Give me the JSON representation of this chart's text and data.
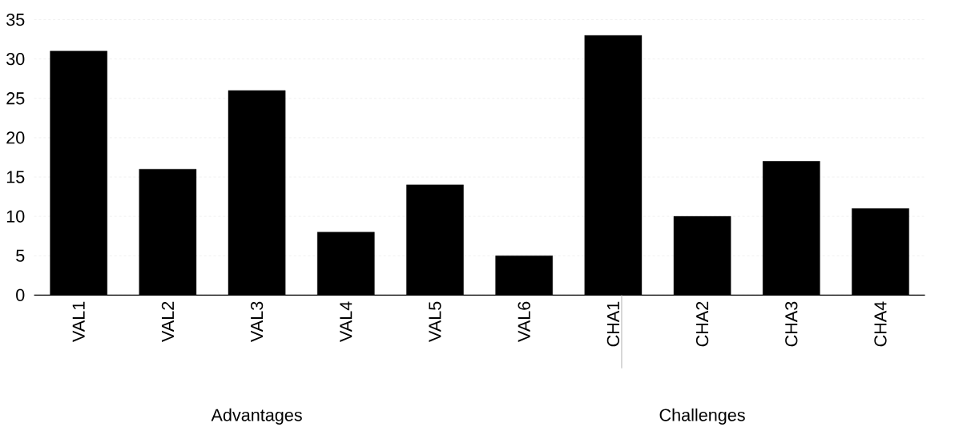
{
  "chart_data": {
    "type": "bar",
    "categories": [
      "VAL1",
      "VAL2",
      "VAL3",
      "VAL4",
      "VAL5",
      "VAL6",
      "CHA1",
      "CHA2",
      "CHA3",
      "CHA4"
    ],
    "values": [
      31,
      16,
      26,
      8,
      14,
      5,
      33,
      10,
      17,
      11
    ],
    "color": "#000000",
    "ylim": [
      0,
      35
    ],
    "yticks": [
      0,
      5,
      10,
      15,
      20,
      25,
      30,
      35
    ],
    "grid": "y",
    "annotations": [
      "Advantages",
      "Challenges"
    ]
  }
}
